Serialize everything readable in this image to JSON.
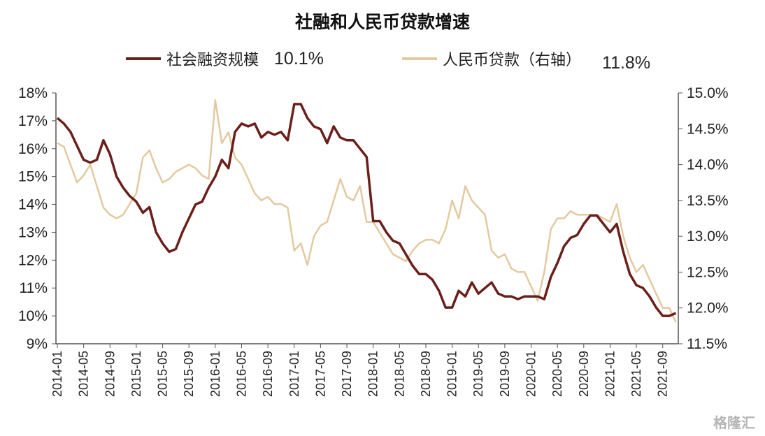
{
  "chart_data": {
    "type": "line",
    "title": "社融和人民币贷款增速",
    "x": [
      "2014-01",
      "2014-02",
      "2014-03",
      "2014-04",
      "2014-05",
      "2014-06",
      "2014-07",
      "2014-08",
      "2014-09",
      "2014-10",
      "2014-11",
      "2014-12",
      "2015-01",
      "2015-02",
      "2015-03",
      "2015-04",
      "2015-05",
      "2015-06",
      "2015-07",
      "2015-08",
      "2015-09",
      "2015-10",
      "2015-11",
      "2015-12",
      "2016-01",
      "2016-02",
      "2016-03",
      "2016-04",
      "2016-05",
      "2016-06",
      "2016-07",
      "2016-08",
      "2016-09",
      "2016-10",
      "2016-11",
      "2016-12",
      "2017-01",
      "2017-02",
      "2017-03",
      "2017-04",
      "2017-05",
      "2017-06",
      "2017-07",
      "2017-08",
      "2017-09",
      "2017-10",
      "2017-11",
      "2017-12",
      "2018-01",
      "2018-02",
      "2018-03",
      "2018-04",
      "2018-05",
      "2018-06",
      "2018-07",
      "2018-08",
      "2018-09",
      "2018-10",
      "2018-11",
      "2018-12",
      "2019-01",
      "2019-02",
      "2019-03",
      "2019-04",
      "2019-05",
      "2019-06",
      "2019-07",
      "2019-08",
      "2019-09",
      "2019-10",
      "2019-11",
      "2019-12",
      "2020-01",
      "2020-02",
      "2020-03",
      "2020-04",
      "2020-05",
      "2020-06",
      "2020-07",
      "2020-08",
      "2020-09",
      "2020-10",
      "2020-11",
      "2020-12",
      "2021-01",
      "2021-02",
      "2021-03",
      "2021-04",
      "2021-05",
      "2021-06",
      "2021-07",
      "2021-08",
      "2021-09",
      "2021-10",
      "2021-11"
    ],
    "x_tick_labels": [
      "2014-01",
      "2014-05",
      "2014-09",
      "2015-01",
      "2015-05",
      "2015-09",
      "2016-01",
      "2016-05",
      "2016-09",
      "2017-01",
      "2017-05",
      "2017-09",
      "2018-01",
      "2018-05",
      "2018-09",
      "2019-01",
      "2019-05",
      "2019-09",
      "2020-01",
      "2020-05",
      "2020-09",
      "2021-01",
      "2021-05",
      "2021-09"
    ],
    "y_left": {
      "range": [
        9,
        18
      ],
      "ticks": [
        "9%",
        "10%",
        "11%",
        "12%",
        "13%",
        "14%",
        "15%",
        "16%",
        "17%",
        "18%"
      ]
    },
    "y_right": {
      "range": [
        11.5,
        15.0
      ],
      "ticks": [
        "11.5%",
        "12.0%",
        "12.5%",
        "13.0%",
        "13.5%",
        "14.0%",
        "14.5%",
        "15.0%"
      ]
    },
    "grid": false,
    "legend_position": "top",
    "series": [
      {
        "name": "社会融资规模",
        "latest_label": "10.1%",
        "axis": "left",
        "color": "#6b1f1a",
        "values": [
          17.1,
          16.9,
          16.6,
          16.1,
          15.6,
          15.5,
          15.6,
          16.3,
          15.8,
          15.0,
          14.6,
          14.3,
          14.1,
          13.7,
          13.9,
          13.0,
          12.6,
          12.3,
          12.4,
          13.0,
          13.5,
          14.0,
          14.1,
          14.6,
          15.0,
          15.6,
          15.3,
          16.6,
          16.9,
          16.8,
          16.9,
          16.4,
          16.6,
          16.5,
          16.6,
          16.3,
          17.6,
          17.6,
          17.1,
          16.8,
          16.7,
          16.2,
          16.8,
          16.4,
          16.3,
          16.3,
          16.0,
          15.7,
          13.4,
          13.4,
          13.0,
          12.7,
          12.6,
          12.2,
          11.8,
          11.5,
          11.5,
          11.3,
          10.9,
          10.3,
          10.3,
          10.9,
          10.7,
          11.2,
          10.8,
          11.0,
          11.2,
          10.8,
          10.7,
          10.7,
          10.6,
          10.7,
          10.7,
          10.7,
          10.6,
          11.4,
          11.9,
          12.5,
          12.8,
          12.9,
          13.3,
          13.6,
          13.6,
          13.3,
          13.0,
          13.3,
          12.3,
          11.5,
          11.1,
          11.0,
          10.7,
          10.3,
          10.0,
          10.0,
          10.1
        ]
      },
      {
        "name": "人民币贷款（右轴）",
        "latest_label": "11.8%",
        "axis": "right",
        "color": "#e3c9a0",
        "values": [
          14.3,
          14.25,
          14.0,
          13.75,
          13.85,
          14.0,
          13.7,
          13.4,
          13.3,
          13.25,
          13.3,
          13.45,
          13.6,
          14.1,
          14.2,
          13.95,
          13.75,
          13.8,
          13.9,
          13.95,
          14.0,
          13.95,
          13.85,
          13.8,
          14.9,
          14.3,
          14.45,
          14.1,
          14.0,
          13.8,
          13.6,
          13.5,
          13.55,
          13.45,
          13.45,
          13.4,
          12.8,
          12.9,
          12.6,
          13.0,
          13.15,
          13.2,
          13.5,
          13.8,
          13.55,
          13.5,
          13.7,
          13.2,
          13.2,
          13.05,
          12.9,
          12.75,
          12.7,
          12.65,
          12.8,
          12.9,
          12.95,
          12.95,
          12.9,
          13.1,
          13.5,
          13.25,
          13.7,
          13.5,
          13.4,
          13.3,
          12.8,
          12.7,
          12.75,
          12.55,
          12.5,
          12.5,
          12.3,
          12.1,
          12.5,
          13.1,
          13.25,
          13.25,
          13.35,
          13.3,
          13.3,
          13.3,
          13.3,
          13.25,
          13.2,
          13.45,
          13.0,
          12.7,
          12.5,
          12.6,
          12.4,
          12.2,
          12.0,
          12.0,
          11.8
        ]
      }
    ]
  },
  "watermark": "格隆汇"
}
